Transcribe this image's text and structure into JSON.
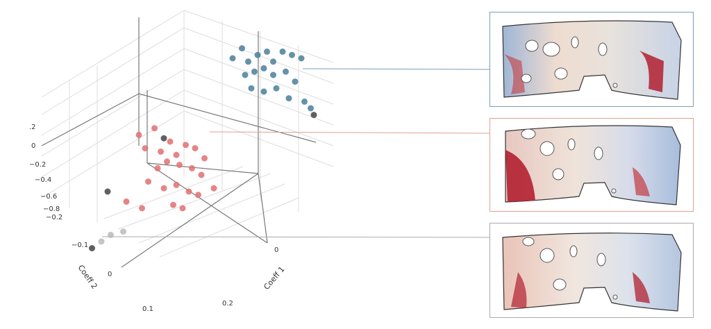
{
  "chart_data": {
    "type": "scatter3d",
    "axis_labels": {
      "x": "Coeff 1",
      "y": "Coeff 2"
    },
    "z_ticks": [
      ".2",
      "0",
      "−0.2",
      "−0.4",
      "−0.6",
      "−0.8"
    ],
    "y_ticks": [
      "−0.2",
      "−0.1",
      "0",
      "0.1",
      "0.2"
    ],
    "x_ticks": [
      "0"
    ],
    "clusters": [
      {
        "name": "blue",
        "color": "#4a7f99",
        "points": [
          [
            0.3,
            0.45
          ],
          [
            0.33,
            0.48
          ],
          [
            0.35,
            0.44
          ],
          [
            0.38,
            0.46
          ],
          [
            0.41,
            0.47
          ],
          [
            0.43,
            0.44
          ],
          [
            0.46,
            0.47
          ],
          [
            0.49,
            0.46
          ],
          [
            0.52,
            0.45
          ],
          [
            0.34,
            0.4
          ],
          [
            0.37,
            0.41
          ],
          [
            0.4,
            0.42
          ],
          [
            0.43,
            0.4
          ],
          [
            0.47,
            0.41
          ],
          [
            0.5,
            0.38
          ],
          [
            0.36,
            0.36
          ],
          [
            0.4,
            0.35
          ],
          [
            0.44,
            0.36
          ],
          [
            0.48,
            0.33
          ],
          [
            0.53,
            0.32
          ],
          [
            0.55,
            0.3
          ]
        ]
      },
      {
        "name": "red",
        "color": "#e07070",
        "points": [
          [
            0.0,
            0.22
          ],
          [
            0.05,
            0.24
          ],
          [
            0.1,
            0.2
          ],
          [
            0.02,
            0.18
          ],
          [
            0.07,
            0.17
          ],
          [
            0.12,
            0.16
          ],
          [
            0.15,
            0.19
          ],
          [
            0.18,
            0.18
          ],
          [
            0.06,
            0.12
          ],
          [
            0.09,
            0.14
          ],
          [
            0.13,
            0.13
          ],
          [
            0.17,
            0.12
          ],
          [
            0.2,
            0.1
          ],
          [
            0.03,
            0.08
          ],
          [
            0.08,
            0.06
          ],
          [
            0.12,
            0.07
          ],
          [
            0.16,
            0.05
          ],
          [
            0.19,
            0.04
          ],
          [
            0.24,
            0.06
          ],
          [
            0.11,
            0.01
          ],
          [
            0.14,
            0.0
          ],
          [
            -0.04,
            0.02
          ],
          [
            0.01,
            0.0
          ],
          [
            0.21,
            0.15
          ]
        ]
      },
      {
        "name": "outlier-dark",
        "color": "#444444",
        "points": [
          [
            0.08,
            0.21
          ],
          [
            0.56,
            0.28
          ],
          [
            -0.1,
            0.05
          ],
          [
            -0.15,
            -0.12
          ]
        ]
      },
      {
        "name": "grey",
        "color": "#bbbbbb",
        "points": [
          [
            -0.09,
            -0.08
          ],
          [
            -0.05,
            -0.07
          ],
          [
            -0.12,
            -0.1
          ]
        ]
      }
    ],
    "highlighted": [
      "blue-cluster",
      "red-cluster",
      "grey-cluster"
    ]
  },
  "panels": [
    {
      "name": "blue-cluster-panel",
      "border": "#7a9fb0"
    },
    {
      "name": "red-cluster-panel",
      "border": "#e0a090"
    },
    {
      "name": "grey-cluster-panel",
      "border": "#aaaaaa"
    }
  ]
}
